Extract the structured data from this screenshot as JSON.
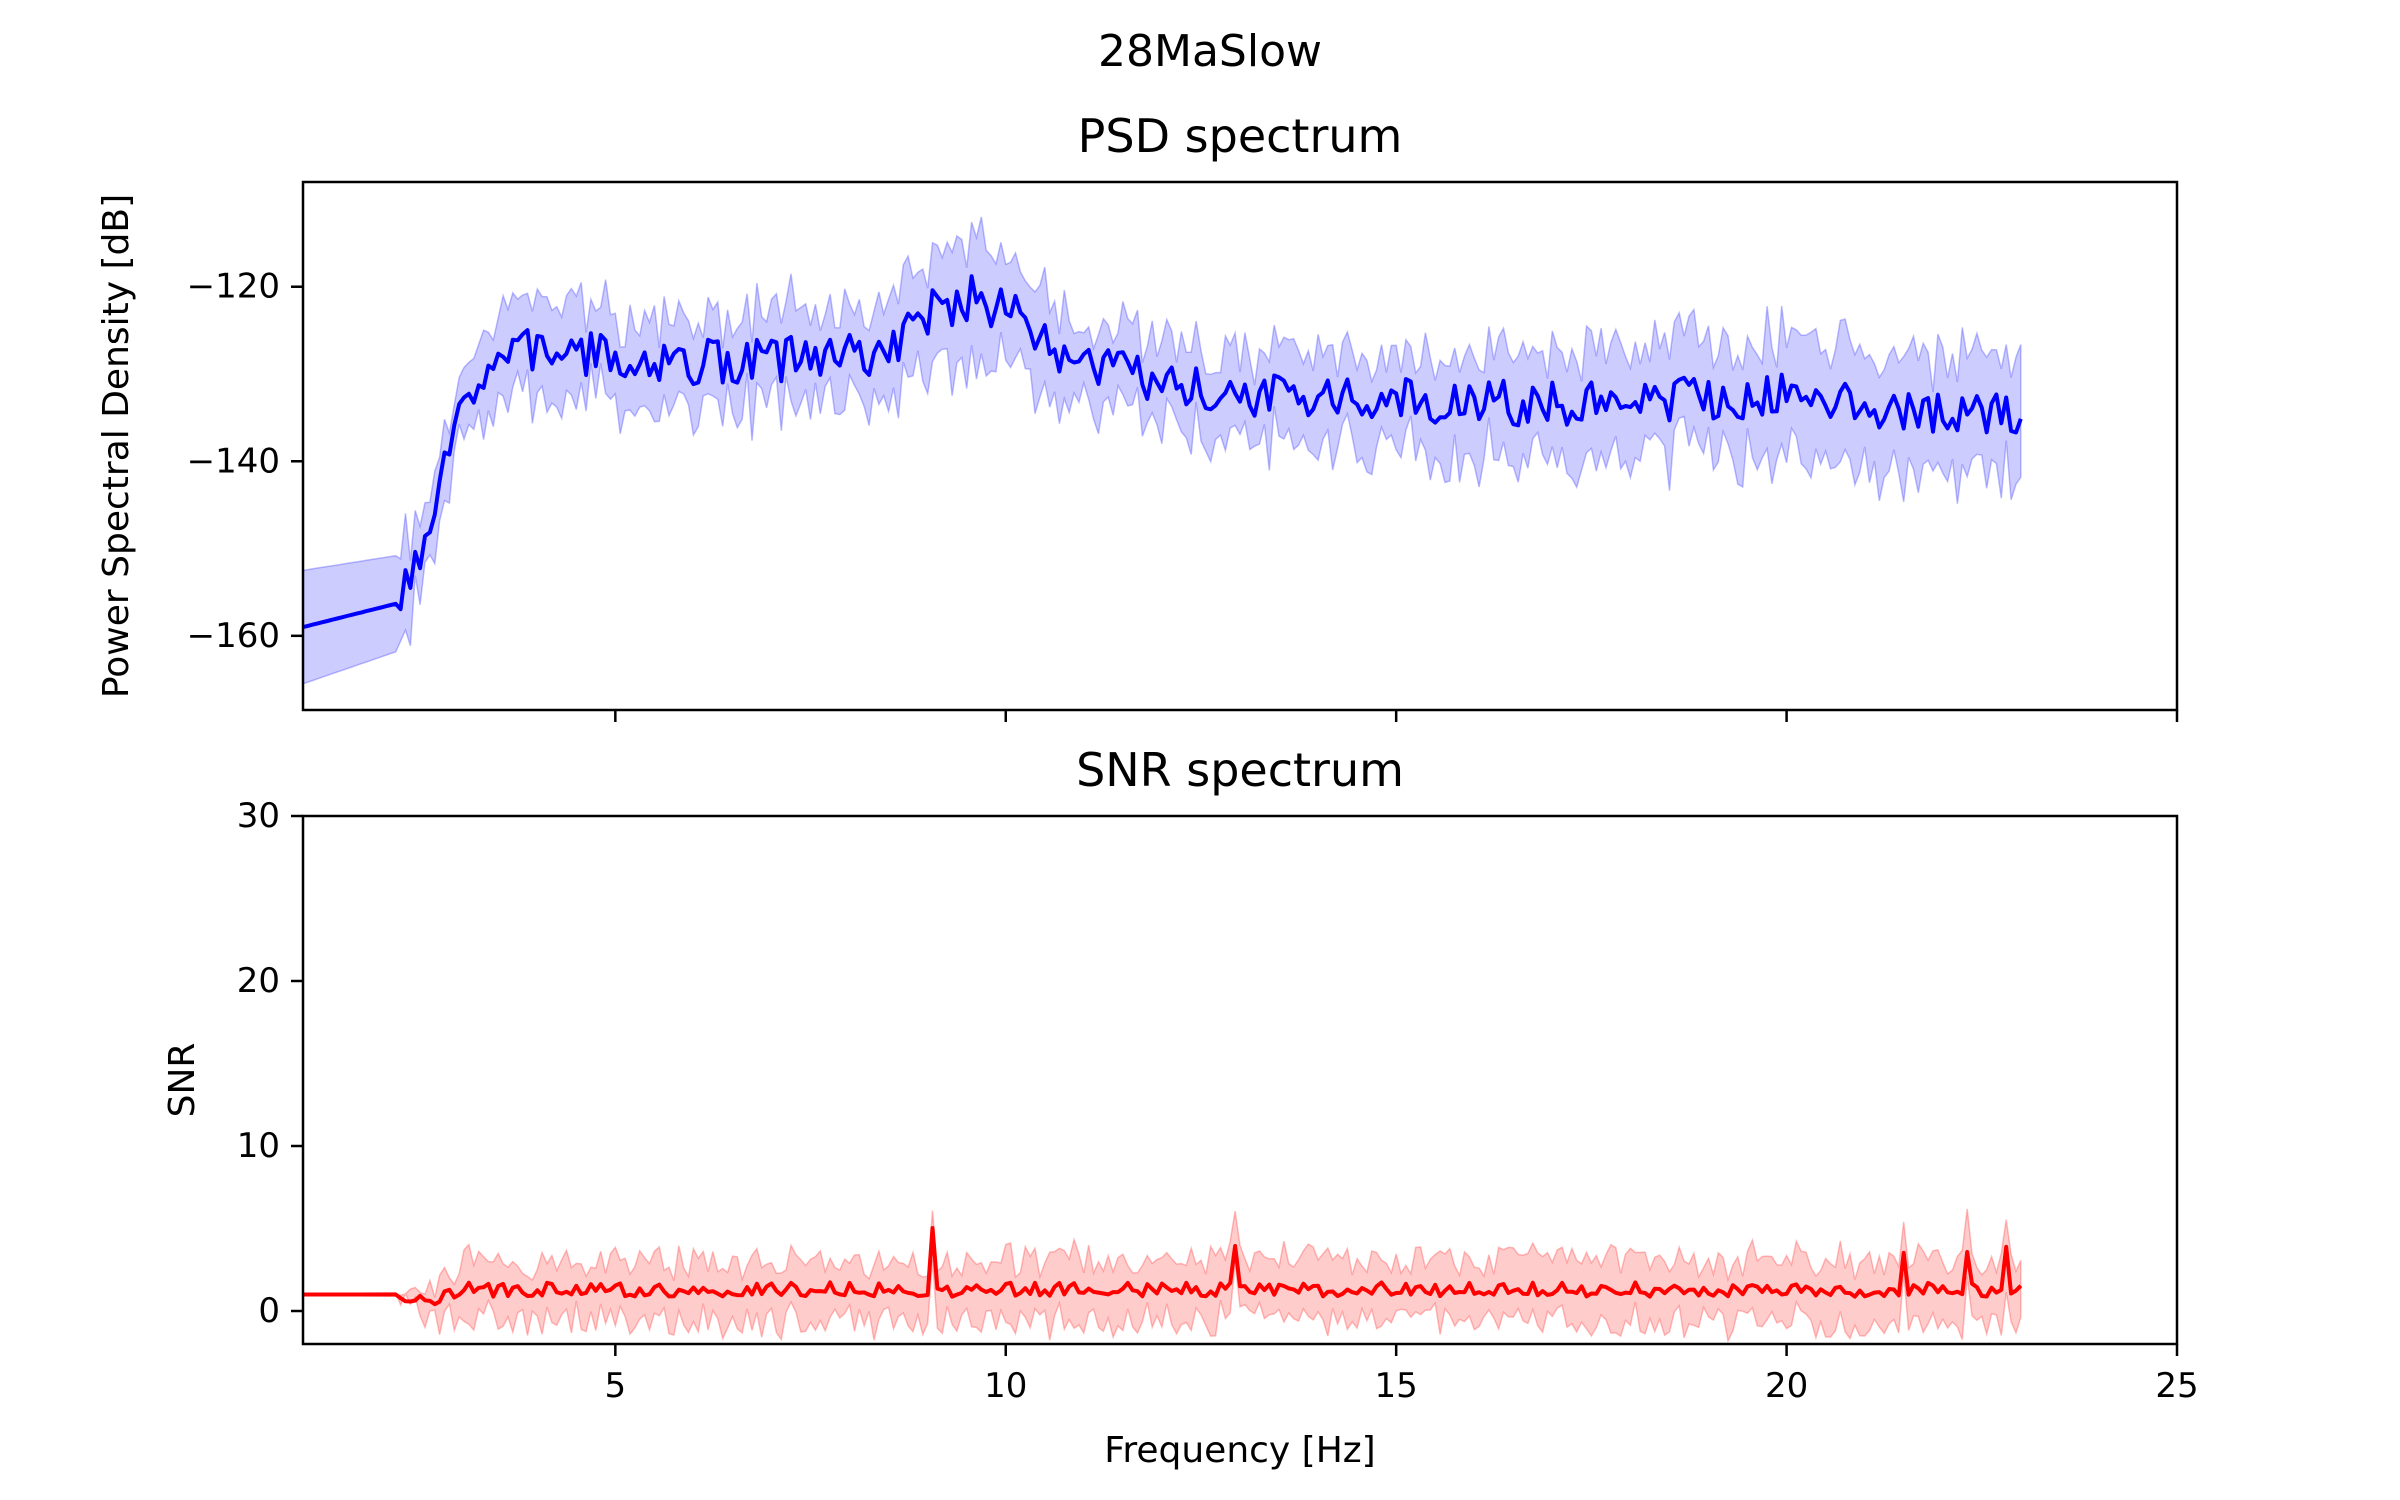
{
  "chart_data": [
    {
      "type": "line",
      "suptitle": "28MaSlow",
      "title": "PSD spectrum",
      "xlabel": "",
      "ylabel": "Power Spectral Density [dB]",
      "xlim": [
        1,
        25
      ],
      "ylim": [
        -168.5,
        -108
      ],
      "xticks": [
        5,
        10,
        15,
        20,
        25
      ],
      "xtick_labels": [
        "",
        "",
        "",
        "",
        ""
      ],
      "yticks": [
        -120,
        -140,
        -160
      ],
      "ytick_labels": [
        "−120",
        "−140",
        "−160"
      ],
      "grid": false,
      "line_color": "#0000ff",
      "band_color": "#0000ff",
      "x_range": [
        1,
        23
      ],
      "anchors": [
        [
          1,
          -159
        ],
        [
          2.2,
          -156.3
        ],
        [
          2.5,
          -152
        ],
        [
          2.75,
          -144
        ],
        [
          3.0,
          -134
        ],
        [
          3.3,
          -130
        ],
        [
          3.6,
          -128
        ],
        [
          4,
          -127
        ],
        [
          5,
          -128.3
        ],
        [
          6,
          -128.7
        ],
        [
          7,
          -128.3
        ],
        [
          8,
          -128
        ],
        [
          8.6,
          -127
        ],
        [
          9,
          -123
        ],
        [
          9.6,
          -121
        ],
        [
          10.2,
          -124
        ],
        [
          10.6,
          -127.5
        ],
        [
          11.3,
          -129.5
        ],
        [
          12,
          -131.5
        ],
        [
          13,
          -132.5
        ],
        [
          15,
          -133
        ],
        [
          17,
          -133.5
        ],
        [
          19,
          -132.5
        ],
        [
          20,
          -132.5
        ],
        [
          21,
          -133.3
        ],
        [
          22,
          -134.5
        ],
        [
          23,
          -134.5
        ]
      ],
      "band_half_width": [
        [
          1,
          6.5
        ],
        [
          2.2,
          5.5
        ],
        [
          2.6,
          4
        ],
        [
          3.0,
          4
        ],
        [
          3.5,
          5.5
        ],
        [
          5,
          5
        ],
        [
          8.5,
          5.5
        ],
        [
          9.6,
          7
        ],
        [
          10.4,
          5.5
        ],
        [
          11,
          4
        ],
        [
          12,
          4.5
        ],
        [
          14,
          5.5
        ],
        [
          16,
          6
        ],
        [
          22,
          6.5
        ],
        [
          23,
          7
        ]
      ],
      "noise_amplitude": 2.6,
      "band_noise_amplitude": 2.0,
      "seed": 7
    },
    {
      "type": "line",
      "title": "SNR spectrum",
      "xlabel": "Frequency [Hz]",
      "ylabel": "SNR",
      "xlim": [
        1,
        25
      ],
      "ylim": [
        -2,
        30
      ],
      "xticks": [
        5,
        10,
        15,
        20,
        25
      ],
      "xtick_labels": [
        "5",
        "10",
        "15",
        "20",
        "25"
      ],
      "yticks": [
        0,
        10,
        20,
        30
      ],
      "ytick_labels": [
        "0",
        "10",
        "20",
        "30"
      ],
      "grid": false,
      "line_color": "#ff0000",
      "band_color": "#ff0000",
      "x_range": [
        1,
        23
      ],
      "anchors": [
        [
          1,
          1.0
        ],
        [
          2.2,
          1.0
        ],
        [
          2.6,
          0.6
        ],
        [
          3.0,
          1.2
        ],
        [
          23,
          1.2
        ]
      ],
      "band_half_width": [
        [
          1,
          0.05
        ],
        [
          2.2,
          0.1
        ],
        [
          2.8,
          1.5
        ],
        [
          3.5,
          1.8
        ],
        [
          23,
          1.9
        ]
      ],
      "spikes": [
        [
          9.05,
          3.5
        ],
        [
          12.95,
          2.7
        ],
        [
          21.5,
          2.3
        ],
        [
          22.3,
          2.5
        ],
        [
          22.8,
          2.4
        ]
      ],
      "noise_amplitude": 0.55,
      "band_noise_amplitude": 0.9,
      "seed": 13
    }
  ]
}
